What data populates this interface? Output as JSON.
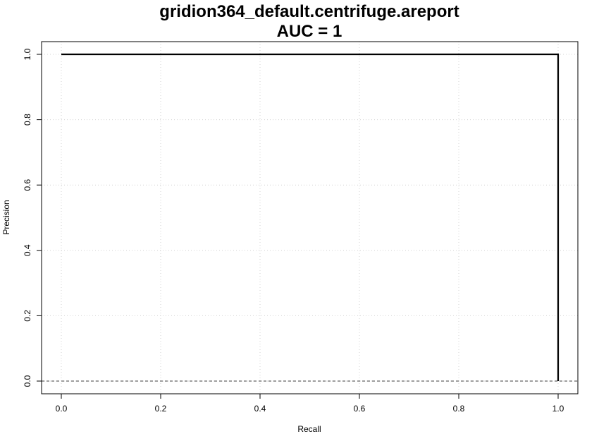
{
  "chart_data": {
    "type": "line",
    "title": "gridion364_default.centrifuge.areport",
    "subtitle": "AUC = 1",
    "xlabel": "Recall",
    "ylabel": "Precision",
    "xlim": [
      0,
      1
    ],
    "ylim": [
      0,
      1
    ],
    "x_ticks": [
      "0.0",
      "0.2",
      "0.4",
      "0.6",
      "0.8",
      "1.0"
    ],
    "y_ticks": [
      "0.0",
      "0.2",
      "0.4",
      "0.6",
      "0.8",
      "1.0"
    ],
    "x_tick_values": [
      0,
      0.2,
      0.4,
      0.6,
      0.8,
      1.0
    ],
    "y_tick_values": [
      0,
      0.2,
      0.4,
      0.6,
      0.8,
      1.0
    ],
    "grid": true,
    "series": [
      {
        "x": [
          0,
          1,
          1
        ],
        "y": [
          1,
          1,
          0
        ],
        "color": "#000000"
      }
    ],
    "baseline": {
      "y": 0,
      "style": "dashed",
      "color": "#666666"
    }
  }
}
